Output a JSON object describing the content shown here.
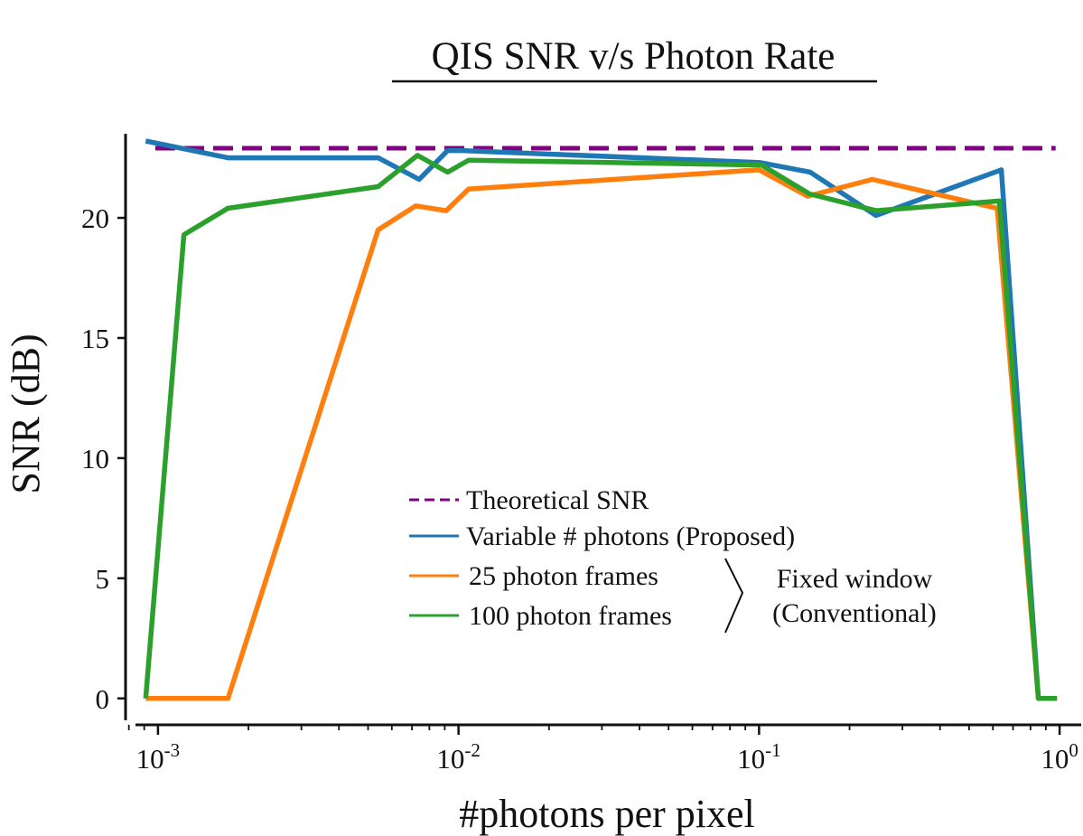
{
  "chart_data": {
    "type": "line",
    "title": "QIS SNR v/s Photon Rate",
    "xlabel": "#photons per pixel",
    "ylabel": "SNR (dB)",
    "xscale": "log",
    "xlim": [
      0.00078,
      1.18
    ],
    "ylim": [
      -1.1,
      23.5
    ],
    "xticks": [
      {
        "value": 0.001,
        "base": "10",
        "exp": "-3"
      },
      {
        "value": 0.01,
        "base": "10",
        "exp": "-2"
      },
      {
        "value": 0.1,
        "base": "10",
        "exp": "-1"
      },
      {
        "value": 1,
        "base": "10",
        "exp": "0"
      }
    ],
    "yticks": [
      0,
      5,
      10,
      15,
      20
    ],
    "yticks_labels": [
      "0",
      "5",
      "10",
      "15",
      "20"
    ],
    "grid": false,
    "legend_position": "center-bottom",
    "series": [
      {
        "name": "Theoretical SNR",
        "color": "#800080",
        "style": "dashed",
        "x": [
          0.00098,
          0.97
        ],
        "y": [
          22.9,
          22.9
        ]
      },
      {
        "name": "Variable # photons (Proposed)",
        "color": "#1f77b4",
        "style": "solid",
        "x": [
          0.00091,
          0.00171,
          0.0054,
          0.0074,
          0.0092,
          0.0103,
          0.101,
          0.148,
          0.245,
          0.64,
          0.85
        ],
        "y": [
          23.2,
          22.5,
          22.5,
          21.6,
          22.8,
          22.8,
          22.3,
          21.9,
          20.1,
          22.0,
          0.0
        ]
      },
      {
        "name": "25 photon frames",
        "color": "#ff7f0e",
        "style": "solid",
        "x": [
          0.00091,
          0.00171,
          0.0054,
          0.0072,
          0.0091,
          0.0108,
          0.1,
          0.145,
          0.238,
          0.62,
          0.85,
          0.98
        ],
        "y": [
          0.0,
          0.0,
          19.5,
          20.5,
          20.3,
          21.2,
          22.0,
          20.9,
          21.6,
          20.4,
          0.0,
          0.0
        ]
      },
      {
        "name": "100 photon frames",
        "color": "#2ca02c",
        "style": "solid",
        "x": [
          0.00091,
          0.00122,
          0.00171,
          0.0054,
          0.0073,
          0.0092,
          0.0108,
          0.102,
          0.147,
          0.245,
          0.63,
          0.85,
          0.98
        ],
        "y": [
          0.0,
          19.3,
          20.4,
          21.3,
          22.6,
          21.9,
          22.4,
          22.2,
          21.0,
          20.3,
          20.7,
          0.0,
          0.0
        ]
      }
    ],
    "annotation": {
      "label_line1": "Fixed window",
      "label_line2": "(Conventional)"
    }
  }
}
